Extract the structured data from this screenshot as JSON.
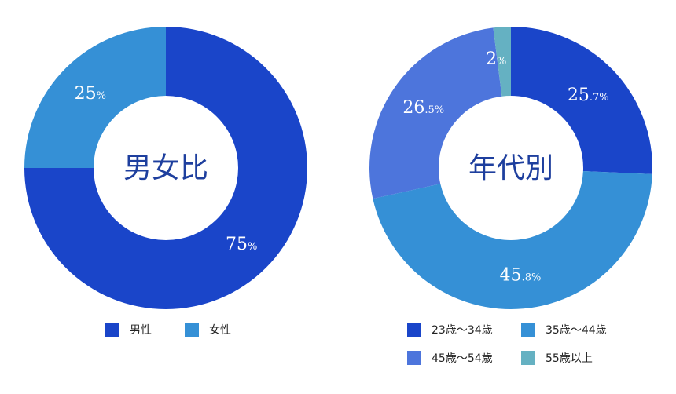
{
  "chart_data": [
    {
      "type": "pie",
      "title": "男女比",
      "categories": [
        "男性",
        "女性"
      ],
      "values": [
        75,
        25
      ],
      "labels": [
        {
          "number": "75",
          "unit": "%"
        },
        {
          "number": "25",
          "unit": "%"
        }
      ],
      "colors": [
        "#1a45c9",
        "#3590d6"
      ],
      "legend_position": "bottom"
    },
    {
      "type": "pie",
      "title": "年代別",
      "categories": [
        "23歳〜34歳",
        "35歳〜44歳",
        "45歳〜54歳",
        "55歳以上"
      ],
      "values": [
        25.7,
        45.8,
        26.5,
        2
      ],
      "labels": [
        {
          "number": "25",
          "unit": ".7%"
        },
        {
          "number": "45",
          "unit": ".8%"
        },
        {
          "number": "26",
          "unit": ".5%"
        },
        {
          "number": "2",
          "unit": "%"
        }
      ],
      "colors": [
        "#1a45c9",
        "#3590d6",
        "#4d75dc",
        "#65b1c2"
      ],
      "legend_position": "bottom"
    }
  ]
}
